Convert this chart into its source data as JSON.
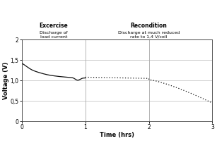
{
  "title_left": "Excercise",
  "subtitle_left": "Discharge of\nload current",
  "title_right": "Recondition",
  "subtitle_right": "Discharge at much reduced\nrate to 1,4 V/cell",
  "xlabel": "Time (hrs)",
  "ylabel": "Voltage (V)",
  "xlim": [
    0,
    3
  ],
  "ylim": [
    0,
    2
  ],
  "xticks": [
    0,
    1,
    2,
    3
  ],
  "yticks": [
    0,
    0.5,
    1.0,
    1.5,
    2.0
  ],
  "ytick_labels": [
    "0",
    "0,5",
    "1,0",
    "1,5",
    "2"
  ],
  "xtick_labels": [
    "0",
    "1",
    "2",
    "3"
  ],
  "vline1_x": 1,
  "vline2_x": 2,
  "line_color": "#111111",
  "grid_color": "#aaaaaa",
  "background_color": "#ffffff"
}
